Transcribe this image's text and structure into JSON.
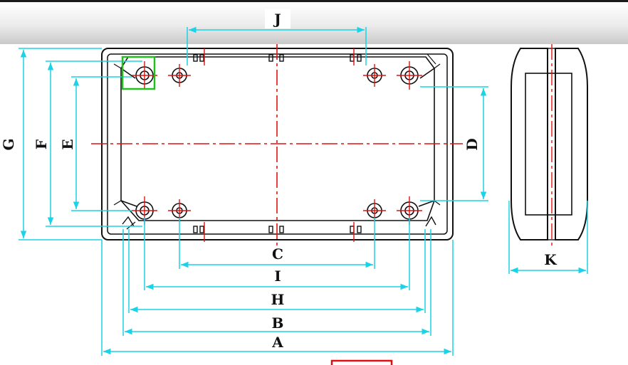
{
  "dimension_labels": {
    "J": "J",
    "G": "G",
    "F": "F",
    "E": "E",
    "D": "D",
    "C": "C",
    "I": "I",
    "H": "H",
    "B": "B",
    "A": "A",
    "K": "K"
  },
  "colors": {
    "outline": "#111111",
    "dimension": "#1ad3e6",
    "centerline": "#e01010",
    "highlight_green": "#22c01c",
    "highlight_red": "#e01010"
  }
}
